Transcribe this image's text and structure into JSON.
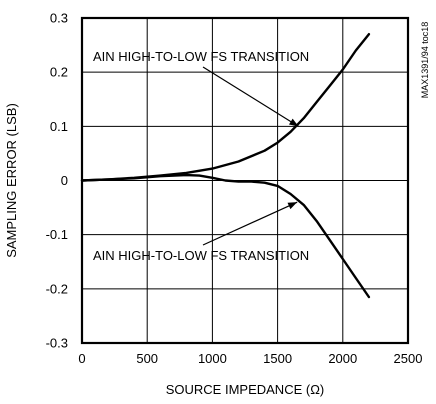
{
  "chart_data": {
    "type": "line",
    "xlabel": "SOURCE IMPEDANCE (Ω)",
    "ylabel": "SAMPLING ERROR (LSB)",
    "xlim": [
      0,
      2500
    ],
    "ylim": [
      -0.3,
      0.3
    ],
    "xticks": [
      0,
      500,
      1000,
      1500,
      2000,
      2500
    ],
    "yticks": [
      -0.3,
      -0.2,
      -0.1,
      0,
      0.1,
      0.2,
      0.3
    ],
    "xtick_labels": [
      "0",
      "500",
      "1000",
      "1500",
      "2000",
      "2500"
    ],
    "ytick_labels": [
      "-0.3",
      "-0.2",
      "-0.1",
      "0",
      "0.1",
      "0.2",
      "0.3"
    ],
    "grid": true,
    "series": [
      {
        "x": [
          0,
          200,
          400,
          600,
          800,
          1000,
          1200,
          1400,
          1500,
          1600,
          1700,
          1800,
          1900,
          2000,
          2100,
          2200
        ],
        "y": [
          0,
          0.002,
          0.005,
          0.009,
          0.014,
          0.022,
          0.035,
          0.055,
          0.07,
          0.09,
          0.115,
          0.145,
          0.175,
          0.205,
          0.24,
          0.27
        ]
      },
      {
        "x": [
          0,
          200,
          400,
          600,
          800,
          900,
          1000,
          1100,
          1200,
          1300,
          1400,
          1500,
          1600,
          1700,
          1800,
          1900,
          2000,
          2100,
          2200
        ],
        "y": [
          0,
          0.002,
          0.004,
          0.008,
          0.01,
          0.009,
          0.005,
          0.0,
          -0.002,
          -0.002,
          -0.004,
          -0.01,
          -0.025,
          -0.045,
          -0.075,
          -0.11,
          -0.145,
          -0.18,
          -0.215
        ]
      }
    ],
    "annotations": [
      {
        "text": "AIN HIGH-TO-LOW FS TRANSITION",
        "x": 1660,
        "y": 0.1
      },
      {
        "text": "AIN HIGH-TO-LOW FS TRANSITION",
        "x": 1650,
        "y": -0.04
      }
    ],
    "side_label": "MAX1391/94 toc18"
  }
}
